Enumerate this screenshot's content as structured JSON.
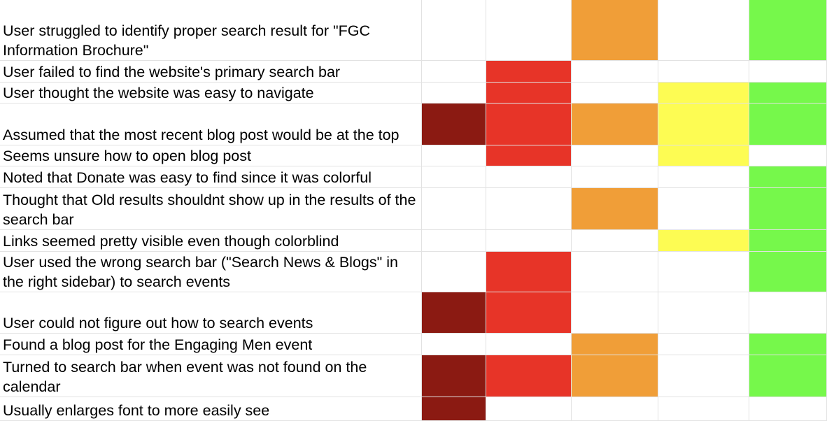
{
  "colors": {
    "dark_red": "#8b1a12",
    "red": "#e73428",
    "orange": "#f09e38",
    "yellow": "#fdfc53",
    "green": "#76f84b",
    "none": "#ffffff"
  },
  "column_labels": [
    "",
    "",
    "",
    "",
    ""
  ],
  "rows": [
    {
      "label": "User struggled to identify proper search result for \"FGC Information Brochure\"",
      "flags": [
        "none",
        "none",
        "orange",
        "none",
        "green"
      ]
    },
    {
      "label": "User failed to find the website's primary search bar",
      "flags": [
        "none",
        "red",
        "none",
        "none",
        "none"
      ]
    },
    {
      "label": "User thought the website was easy to navigate",
      "flags": [
        "none",
        "red",
        "none",
        "yellow",
        "green"
      ]
    },
    {
      "label": "Assumed that the most recent blog post would be at the top",
      "flags": [
        "dark_red",
        "red",
        "orange",
        "yellow",
        "green"
      ]
    },
    {
      "label": "Seems unsure how to open blog post",
      "flags": [
        "none",
        "red",
        "none",
        "yellow",
        "none"
      ]
    },
    {
      "label": "Noted that Donate was easy to find since it was colorful",
      "flags": [
        "none",
        "none",
        "none",
        "none",
        "green"
      ]
    },
    {
      "label": "Thought that Old results shouldnt show up in the results of the search bar",
      "flags": [
        "none",
        "none",
        "orange",
        "none",
        "green"
      ]
    },
    {
      "label": "Links seemed pretty visible even though colorblind",
      "flags": [
        "none",
        "none",
        "none",
        "yellow",
        "green"
      ]
    },
    {
      "label": "User used the wrong search bar (\"Search News & Blogs\" in the right sidebar) to search events",
      "flags": [
        "none",
        "red",
        "none",
        "none",
        "green"
      ]
    },
    {
      "label": "User could not figure out how to search events",
      "flags": [
        "dark_red",
        "red",
        "none",
        "none",
        "none"
      ]
    },
    {
      "label": "Found a blog post for the Engaging Men event",
      "flags": [
        "none",
        "none",
        "orange",
        "none",
        "green"
      ]
    },
    {
      "label": "Turned to search bar when event was not found on the calendar",
      "flags": [
        "dark_red",
        "red",
        "orange",
        "none",
        "green"
      ]
    },
    {
      "label": "Usually enlarges font to more easily see",
      "flags": [
        "dark_red",
        "none",
        "none",
        "none",
        "none"
      ]
    }
  ]
}
